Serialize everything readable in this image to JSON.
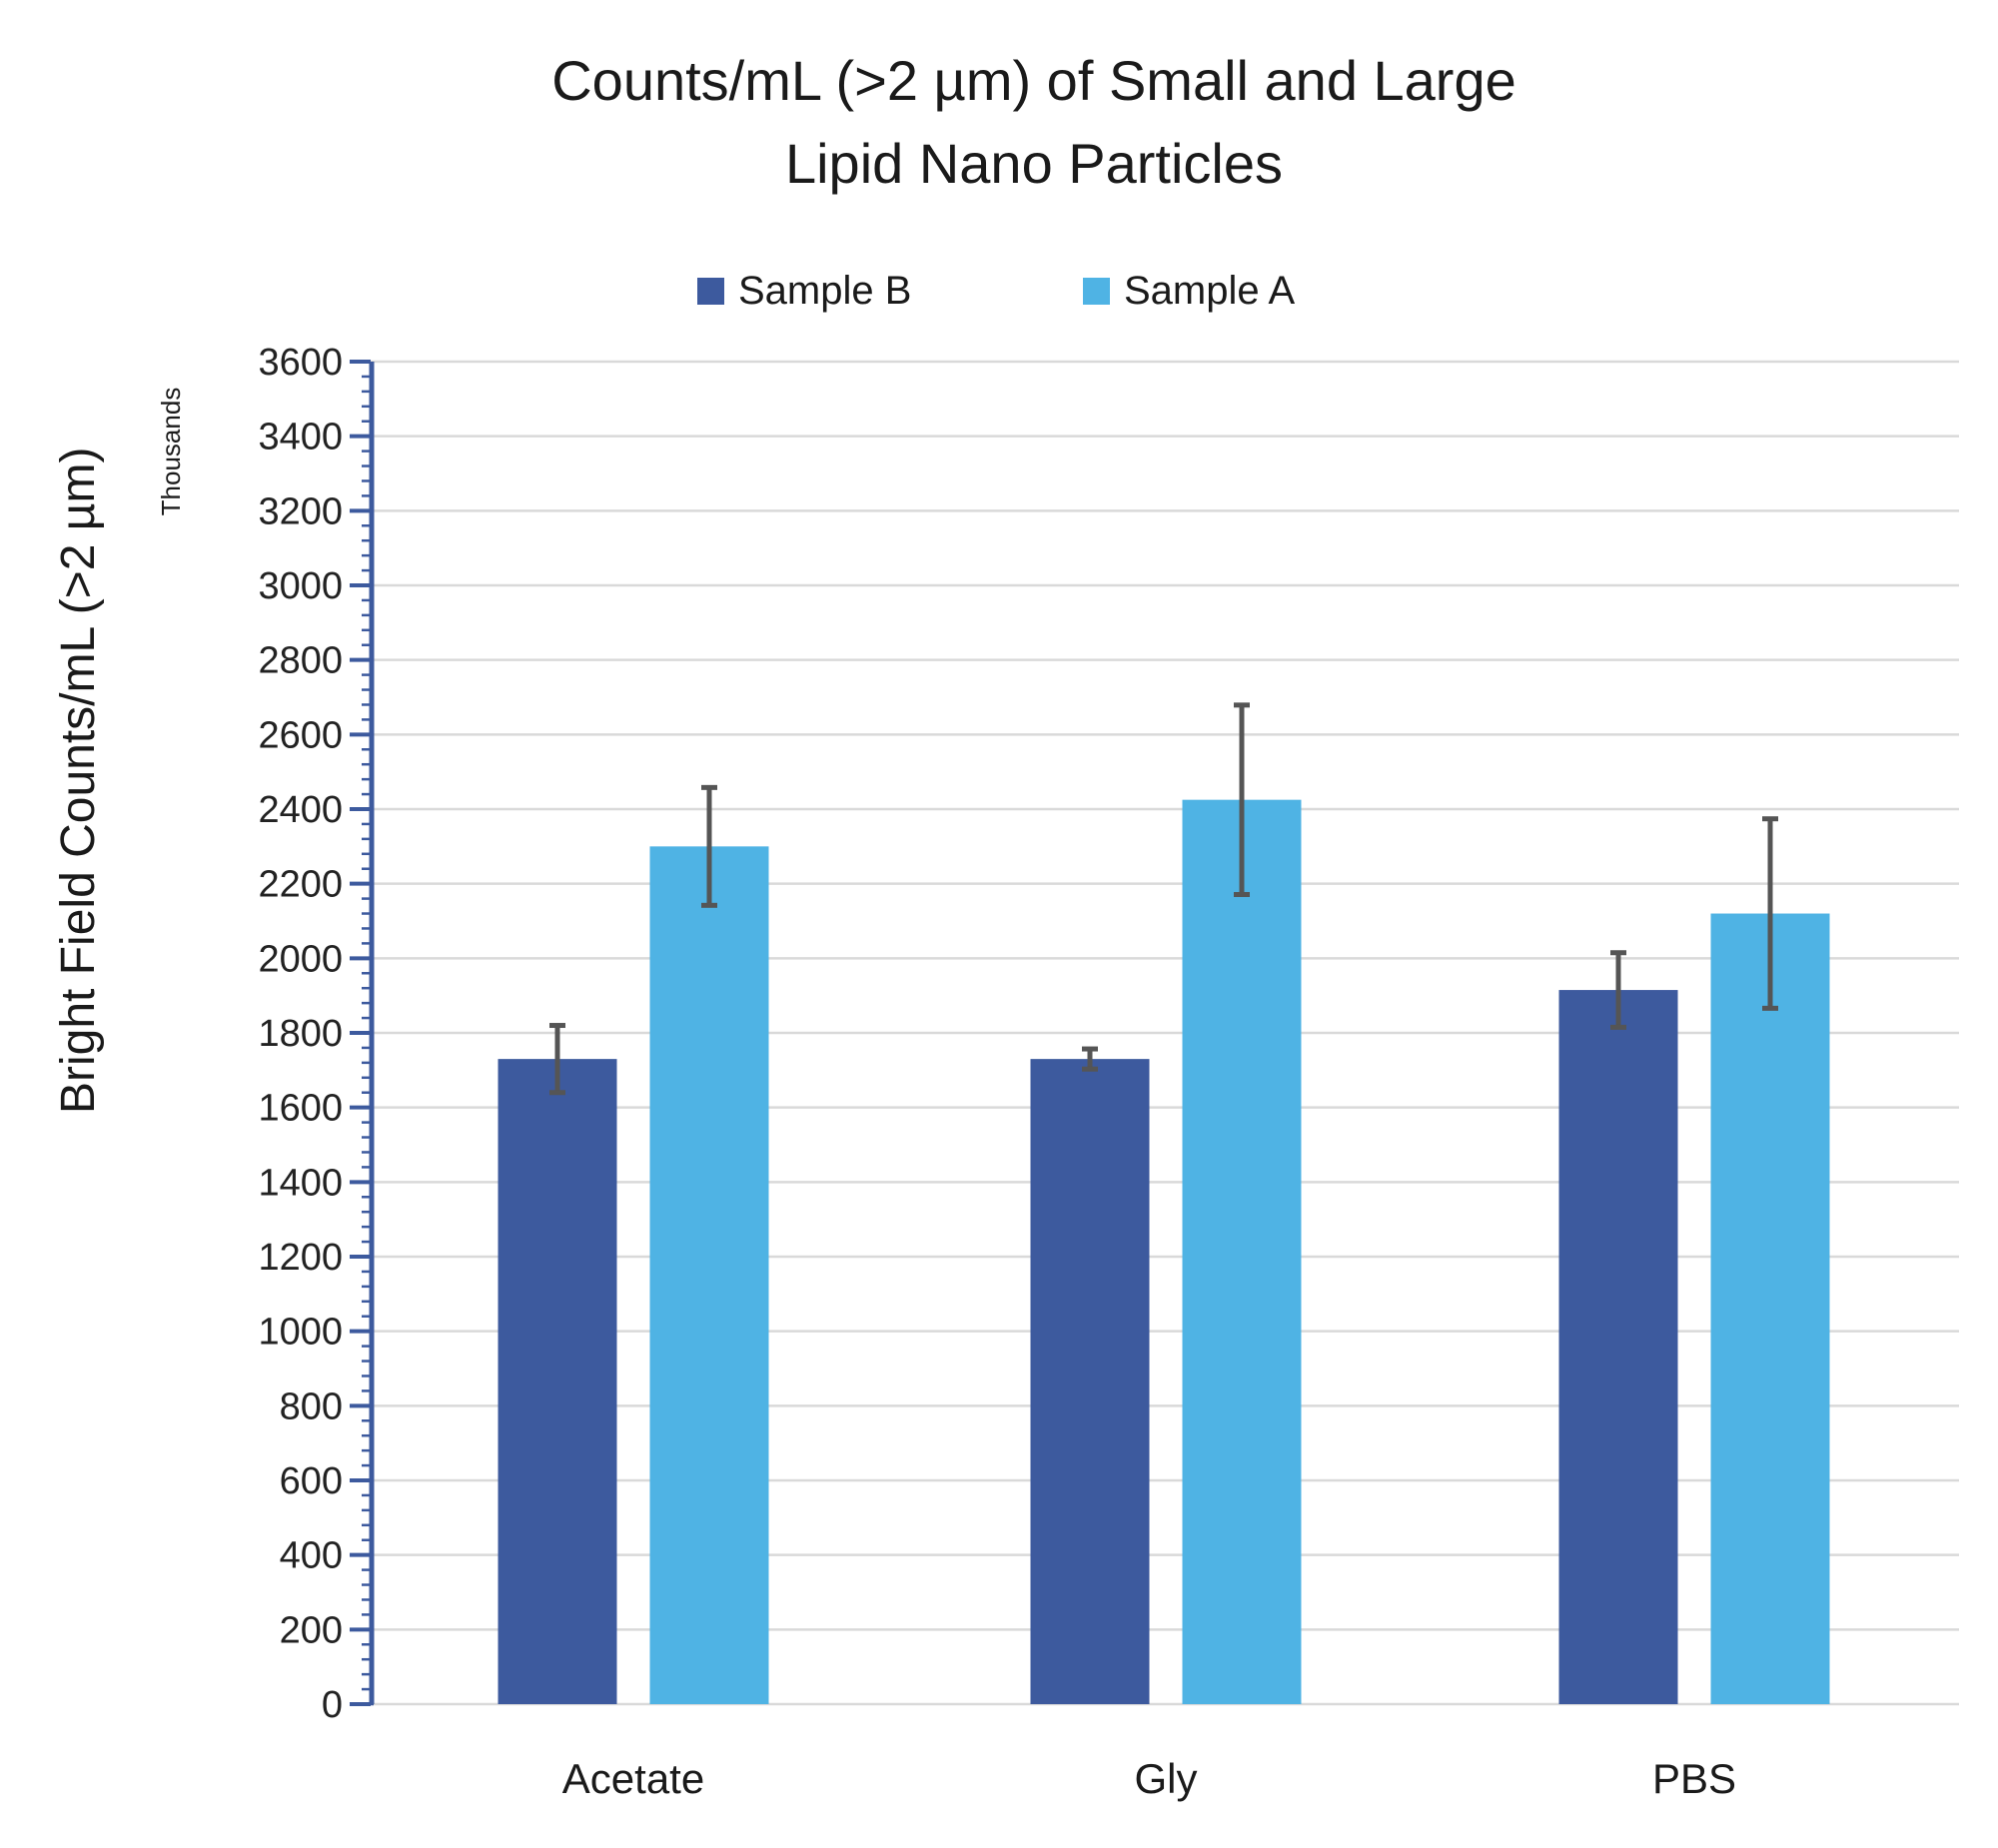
{
  "chart_data": {
    "type": "bar",
    "title": [
      "Counts/mL (>2 µm) of Small and Large",
      "Lipid Nano Particles"
    ],
    "xlabel": "",
    "ylabel": "Bright Field Counts/mL (>2 µm)",
    "yunit_label": "Thousands",
    "ylim": [
      0,
      3600
    ],
    "ytick_step": 200,
    "grid": true,
    "legend_position": "top",
    "categories": [
      "Acetate",
      "Gly",
      "PBS"
    ],
    "series": [
      {
        "name": "Sample B",
        "color": "#3d5a9e",
        "values": [
          1730,
          1730,
          1915
        ],
        "errors": [
          90,
          27,
          100
        ]
      },
      {
        "name": "Sample A",
        "color": "#4fb3e4",
        "values": [
          2300,
          2425,
          2120
        ],
        "errors": [
          158,
          254,
          254
        ]
      }
    ],
    "error_bar_color": "#555555",
    "axis_color": "#3d5a9e"
  }
}
